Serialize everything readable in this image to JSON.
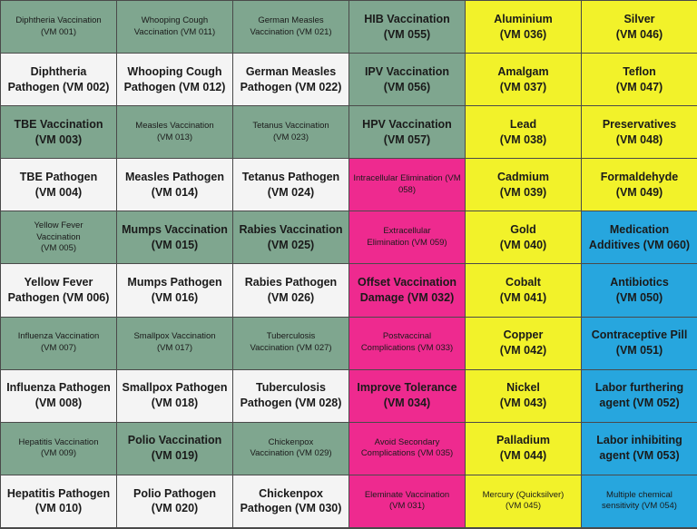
{
  "colors": {
    "green": "#7fa68f",
    "white": "#f4f4f4",
    "pink": "#ee2a8f",
    "yellow": "#f2f22a",
    "blue": "#27a6de"
  },
  "cells": [
    {
      "l1": "Diphtheria Vaccination",
      "l2": "(VM 001)"
    },
    {
      "l1": "Whooping Cough",
      "l2": "Vaccination (VM 011)"
    },
    {
      "l1": "German Measles",
      "l2": "Vaccination (VM 021)"
    },
    {
      "l1": "HIB Vaccination",
      "l2": "(VM 055)"
    },
    {
      "l1": "Aluminium",
      "l2": "(VM 036)"
    },
    {
      "l1": "Silver",
      "l2": "(VM 046)"
    },
    {
      "l1": "Diphtheria",
      "l2": "Pathogen (VM 002)"
    },
    {
      "l1": "Whooping Cough",
      "l2": "Pathogen (VM 012)"
    },
    {
      "l1": "German Measles",
      "l2": "Pathogen (VM 022)"
    },
    {
      "l1": "IPV Vaccination",
      "l2": "(VM 056)"
    },
    {
      "l1": "Amalgam",
      "l2": "(VM 037)"
    },
    {
      "l1": "Teflon",
      "l2": "(VM 047)"
    },
    {
      "l1": "TBE Vaccination",
      "l2": "(VM 003)"
    },
    {
      "l1": "Measles Vaccination",
      "l2": "(VM 013)"
    },
    {
      "l1": "Tetanus Vaccination",
      "l2": "(VM 023)"
    },
    {
      "l1": "HPV Vaccination",
      "l2": "(VM 057)"
    },
    {
      "l1": "Lead",
      "l2": "(VM 038)"
    },
    {
      "l1": "Preservatives",
      "l2": "(VM 048)"
    },
    {
      "l1": "TBE Pathogen",
      "l2": "(VM 004)"
    },
    {
      "l1": "Measles Pathogen",
      "l2": "(VM 014)"
    },
    {
      "l1": "Tetanus Pathogen",
      "l2": "(VM 024)"
    },
    {
      "l1": "Intracellular Elimination (VM 058)",
      "l2": ""
    },
    {
      "l1": "Cadmium",
      "l2": "(VM 039)"
    },
    {
      "l1": "Formaldehyde",
      "l2": "(VM 049)"
    },
    {
      "l1": "Yellow Fever",
      "l2": "Vaccination",
      "l3": "(VM 005)"
    },
    {
      "l1": "Mumps Vaccination",
      "l2": "(VM 015)"
    },
    {
      "l1": "Rabies Vaccination",
      "l2": "(VM 025)"
    },
    {
      "l1": "Extracellular",
      "l2": "Elimination (VM 059)"
    },
    {
      "l1": "Gold",
      "l2": "(VM 040)"
    },
    {
      "l1": "Medication",
      "l2": "Additives (VM 060)"
    },
    {
      "l1": "Yellow Fever",
      "l2": "Pathogen (VM 006)"
    },
    {
      "l1": "Mumps Pathogen",
      "l2": "(VM 016)"
    },
    {
      "l1": "Rabies Pathogen",
      "l2": "(VM 026)"
    },
    {
      "l1": "Offset Vaccination",
      "l2": "Damage (VM 032)"
    },
    {
      "l1": "Cobalt",
      "l2": "(VM 041)"
    },
    {
      "l1": "Antibiotics",
      "l2": "(VM 050)"
    },
    {
      "l1": "Influenza Vaccination",
      "l2": "(VM 007)"
    },
    {
      "l1": "Smallpox Vaccination",
      "l2": "(VM 017)"
    },
    {
      "l1": "Tuberculosis",
      "l2": "Vaccination (VM 027)"
    },
    {
      "l1": "Postvaccinal",
      "l2": "Complications (VM 033)"
    },
    {
      "l1": "Copper",
      "l2": "(VM 042)"
    },
    {
      "l1": "Contraceptive Pill",
      "l2": "(VM 051)"
    },
    {
      "l1": "Influenza Pathogen",
      "l2": "(VM 008)"
    },
    {
      "l1": "Smallpox Pathogen",
      "l2": "(VM 018)"
    },
    {
      "l1": "Tuberculosis",
      "l2": "Pathogen (VM 028)"
    },
    {
      "l1": "Improve Tolerance",
      "l2": "(VM 034)"
    },
    {
      "l1": "Nickel",
      "l2": "(VM 043)"
    },
    {
      "l1": "Labor furthering",
      "l2": "agent (VM 052)"
    },
    {
      "l1": "Hepatitis Vaccination",
      "l2": "(VM 009)"
    },
    {
      "l1": "Polio Vaccination",
      "l2": "(VM 019)"
    },
    {
      "l1": "Chickenpox",
      "l2": "Vaccination (VM 029)"
    },
    {
      "l1": "Avoid Secondary",
      "l2": "Complications (VM 035)"
    },
    {
      "l1": "Palladium",
      "l2": "(VM 044)"
    },
    {
      "l1": "Labor inhibiting",
      "l2": "agent (VM 053)"
    },
    {
      "l1": "Hepatitis Pathogen",
      "l2": "(VM 010)"
    },
    {
      "l1": "Polio Pathogen",
      "l2": "(VM 020)"
    },
    {
      "l1": "Chickenpox",
      "l2": "Pathogen (VM 030)"
    },
    {
      "l1": "Eleminate Vaccination",
      "l2": "(VM 031)"
    },
    {
      "l1": "Mercury (Quicksilver)",
      "l2": "(VM 045)"
    },
    {
      "l1": "Multiple chemical",
      "l2": "sensitivity (VM 054)"
    }
  ]
}
